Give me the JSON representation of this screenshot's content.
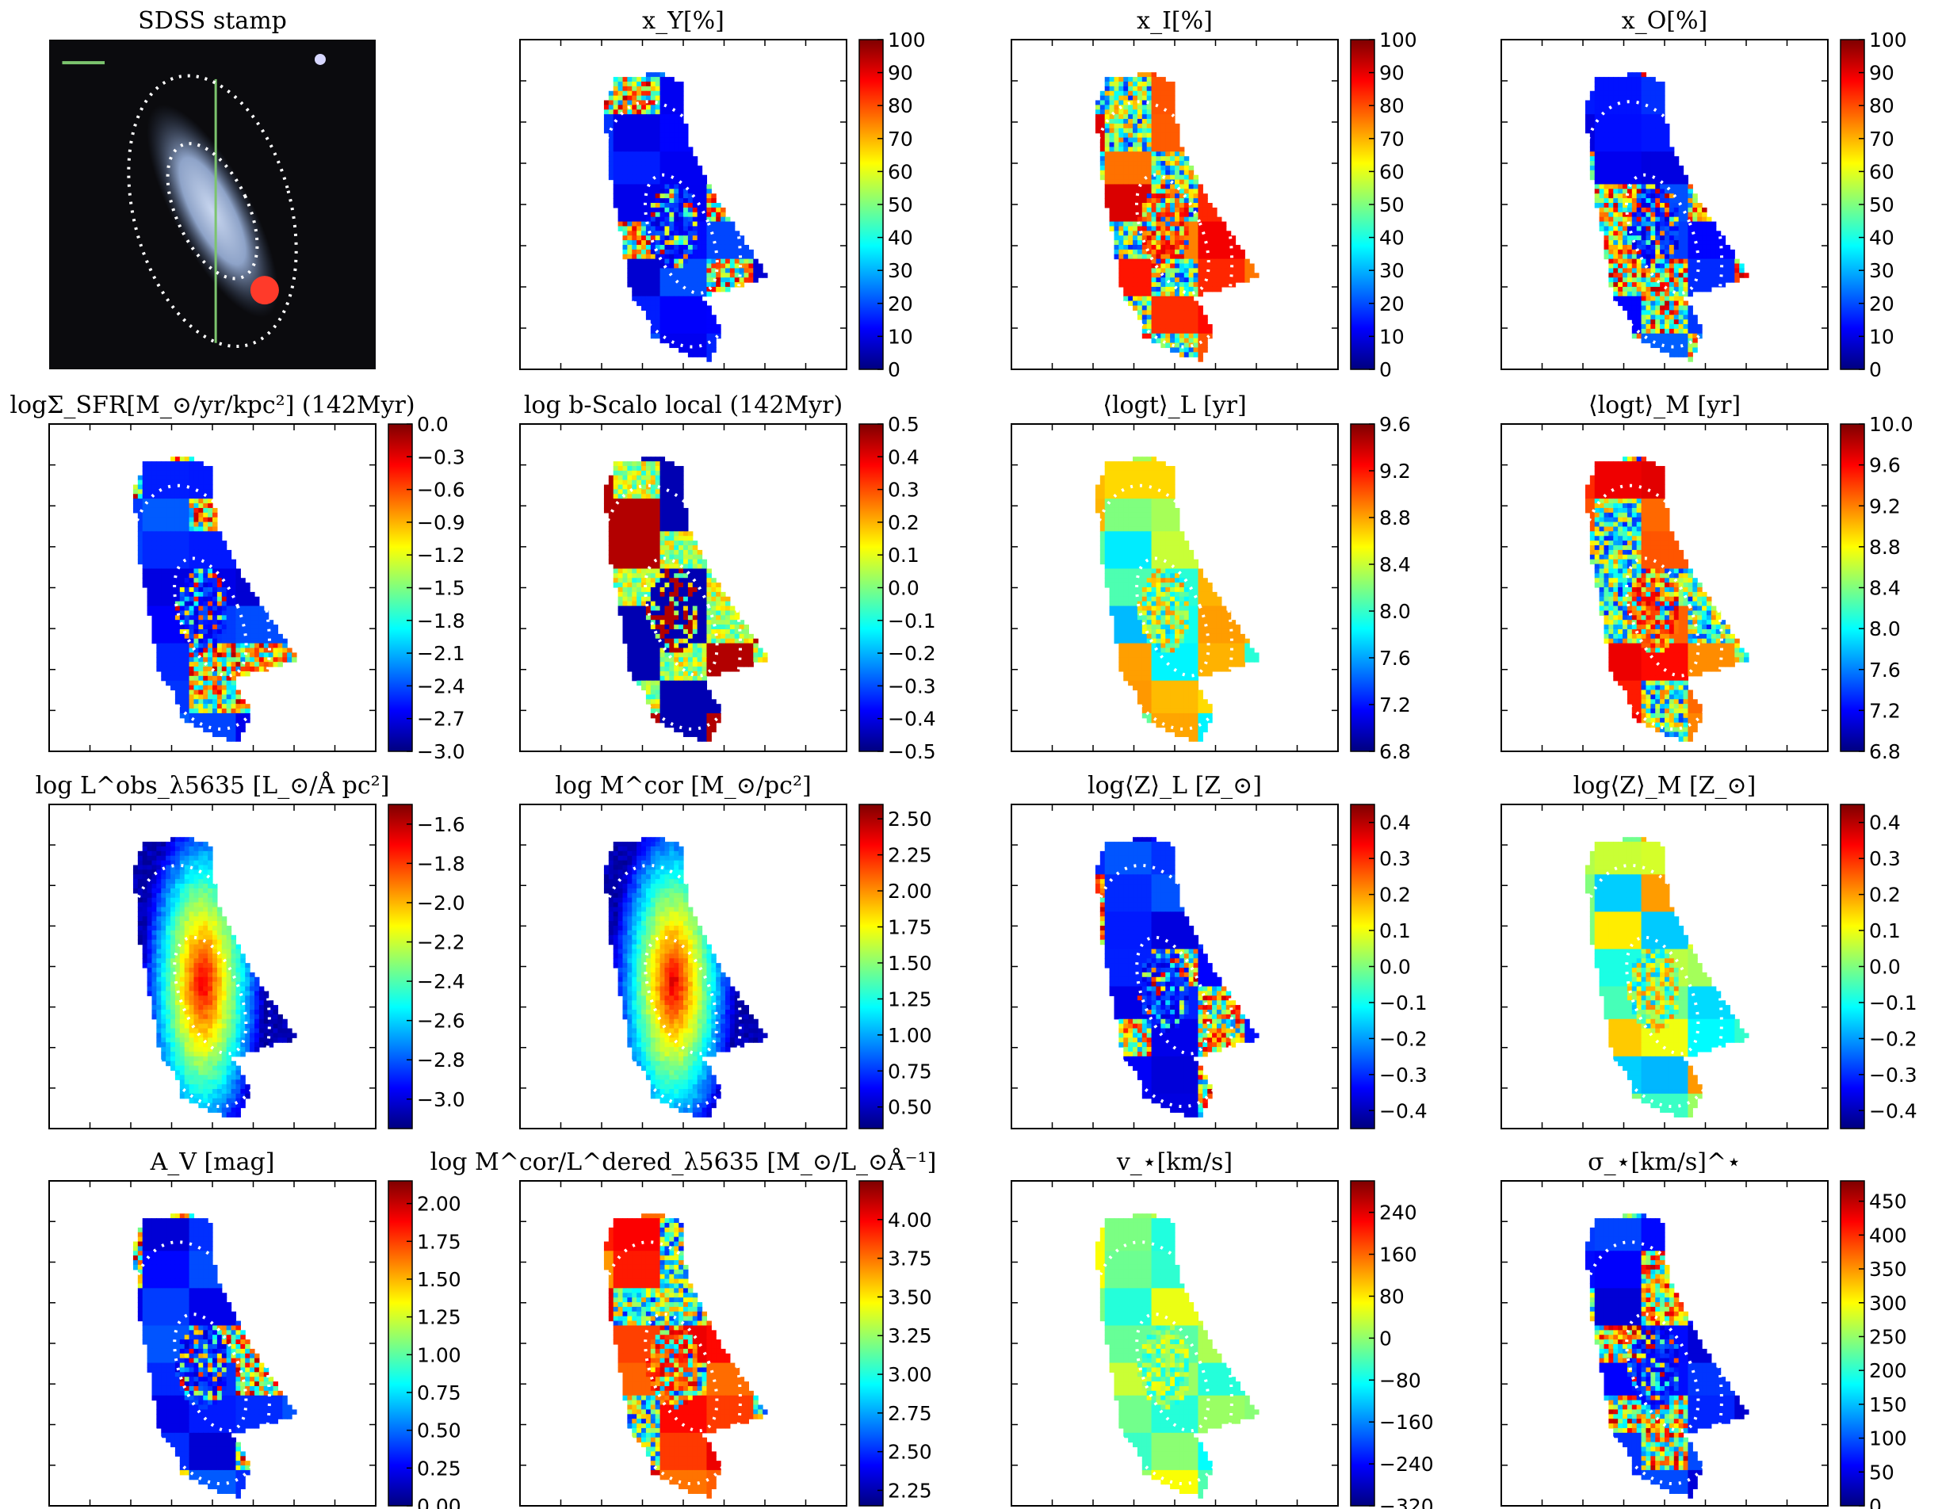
{
  "figure": {
    "palette": {
      "jet": [
        "#00007f",
        "#0000ff",
        "#007fff",
        "#00ffff",
        "#7fff7f",
        "#ffff00",
        "#ff7f00",
        "#ff0000",
        "#7f0000"
      ],
      "stamp_bg": "#0b0b0e",
      "galaxy": "#9aaed0",
      "scale_bar": "#7cc46e",
      "red_star": "#ff3a2a",
      "ellipse": "#ffffff"
    }
  },
  "chart_data": [
    {
      "type": "heatmap",
      "panel": "stamp",
      "title": "SDSS stamp",
      "image": "SDSS color stamp with concentric dotted elliptical apertures"
    },
    {
      "type": "heatmap",
      "panel": "xY",
      "title": "x_Y[%]",
      "colorbar": {
        "range": [
          0,
          100
        ],
        "ticks": [
          0,
          10,
          20,
          30,
          40,
          50,
          60,
          70,
          80,
          90,
          100
        ]
      },
      "map": "low"
    },
    {
      "type": "heatmap",
      "panel": "xI",
      "title": "x_I[%]",
      "colorbar": {
        "range": [
          0,
          100
        ],
        "ticks": [
          0,
          10,
          20,
          30,
          40,
          50,
          60,
          70,
          80,
          90,
          100
        ]
      },
      "map": "high"
    },
    {
      "type": "heatmap",
      "panel": "xO",
      "title": "x_O[%]",
      "colorbar": {
        "range": [
          0,
          100
        ],
        "ticks": [
          0,
          10,
          20,
          30,
          40,
          50,
          60,
          70,
          80,
          90,
          100
        ]
      },
      "map": "low"
    },
    {
      "type": "heatmap",
      "panel": "sfr",
      "title": "logΣ_SFR[M_⊙/yr/kpc²] (142Myr)",
      "colorbar": {
        "range": [
          -3.0,
          0.0
        ],
        "ticks": [
          "0.0",
          "−0.3",
          "−0.6",
          "−0.9",
          "−1.2",
          "−1.5",
          "−1.8",
          "−2.1",
          "−2.4",
          "−2.7",
          "−3.0"
        ]
      },
      "map": "low"
    },
    {
      "type": "heatmap",
      "panel": "bscalo",
      "title": "log b-Scalo local (142Myr)",
      "colorbar": {
        "range": [
          -0.5,
          0.5
        ],
        "ticks": [
          "0.5",
          "0.4",
          "0.3",
          "0.2",
          "0.1",
          "0.0",
          "−0.1",
          "−0.2",
          "−0.3",
          "−0.4",
          "−0.5"
        ]
      },
      "map": "mixed"
    },
    {
      "type": "heatmap",
      "panel": "logtL",
      "title": "⟨logt⟩_L [yr]",
      "colorbar": {
        "range": [
          6.8,
          9.6
        ],
        "ticks": [
          "9.6",
          "9.2",
          "8.8",
          "8.4",
          "8.0",
          "7.6",
          "7.2",
          "6.8"
        ]
      },
      "map": "mid"
    },
    {
      "type": "heatmap",
      "panel": "logtM",
      "title": "⟨logt⟩_M [yr]",
      "colorbar": {
        "range": [
          6.8,
          10.0
        ],
        "ticks": [
          "10.0",
          "9.6",
          "9.2",
          "8.8",
          "8.4",
          "8.0",
          "7.6",
          "7.2",
          "6.8"
        ]
      },
      "map": "high"
    },
    {
      "type": "heatmap",
      "panel": "lum",
      "title": "log L^obs_λ5635 [L_⊙/Å pc²]",
      "colorbar": {
        "range": [
          -3.15,
          -1.5
        ],
        "ticks": [
          "−1.6",
          "−1.8",
          "−2.0",
          "−2.2",
          "−2.4",
          "−2.6",
          "−2.8",
          "−3.0"
        ]
      },
      "map": "smooth"
    },
    {
      "type": "heatmap",
      "panel": "mass",
      "title": "log M^cor [M_⊙/pc²]",
      "colorbar": {
        "range": [
          0.35,
          2.6
        ],
        "ticks": [
          "2.50",
          "2.25",
          "2.00",
          "1.75",
          "1.50",
          "1.25",
          "1.00",
          "0.75",
          "0.50"
        ]
      },
      "map": "smooth"
    },
    {
      "type": "heatmap",
      "panel": "ZL",
      "title": "log⟨Z⟩_L [Z_⊙]",
      "colorbar": {
        "range": [
          -0.45,
          0.45
        ],
        "ticks": [
          "0.4",
          "0.3",
          "0.2",
          "0.1",
          "0.0",
          "−0.1",
          "−0.2",
          "−0.3",
          "−0.4"
        ]
      },
      "map": "low"
    },
    {
      "type": "heatmap",
      "panel": "ZM",
      "title": "log⟨Z⟩_M [Z_⊙]",
      "colorbar": {
        "range": [
          -0.45,
          0.45
        ],
        "ticks": [
          "0.4",
          "0.3",
          "0.2",
          "0.1",
          "0.0",
          "−0.1",
          "−0.2",
          "−0.3",
          "−0.4"
        ]
      },
      "map": "mid"
    },
    {
      "type": "heatmap",
      "panel": "Av",
      "title": "A_V [mag]",
      "colorbar": {
        "range": [
          0.0,
          2.15
        ],
        "ticks": [
          "2.00",
          "1.75",
          "1.50",
          "1.25",
          "1.00",
          "0.75",
          "0.50",
          "0.25",
          "0.00"
        ]
      },
      "map": "low"
    },
    {
      "type": "heatmap",
      "panel": "ML",
      "title": "log M^cor/L^dered_λ5635 [M_⊙/L_⊙Å⁻¹]",
      "colorbar": {
        "range": [
          2.15,
          4.25
        ],
        "ticks": [
          "4.00",
          "3.75",
          "3.50",
          "3.25",
          "3.00",
          "2.75",
          "2.50",
          "2.25"
        ]
      },
      "map": "high"
    },
    {
      "type": "heatmap",
      "panel": "vstar",
      "title": "v_⋆[km/s]",
      "colorbar": {
        "range": [
          -320,
          300
        ],
        "ticks": [
          "240",
          "160",
          "80",
          "0",
          "−80",
          "−160",
          "−240",
          "−320"
        ]
      },
      "map": "flat"
    },
    {
      "type": "heatmap",
      "panel": "sigma",
      "title": "σ_⋆[km/s]^⋆",
      "colorbar": {
        "range": [
          0,
          480
        ],
        "ticks": [
          "450",
          "400",
          "350",
          "300",
          "250",
          "200",
          "150",
          "100",
          "50",
          "0"
        ]
      },
      "map": "low"
    }
  ]
}
